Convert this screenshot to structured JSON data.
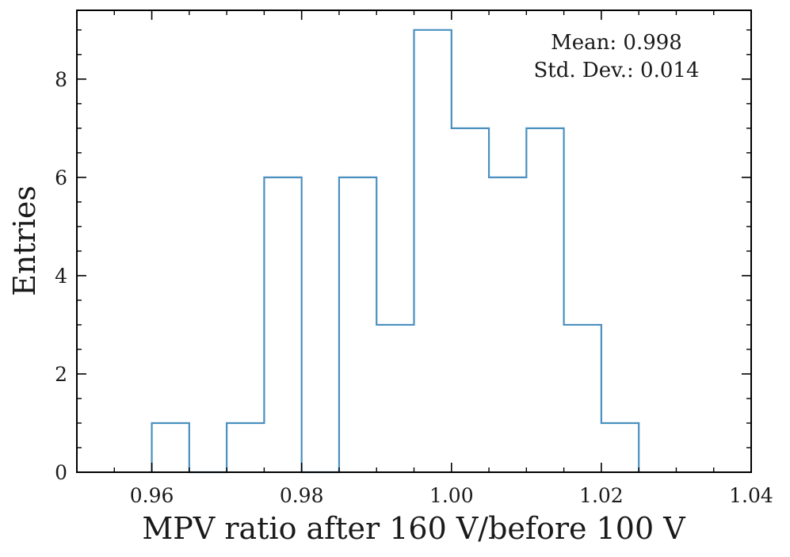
{
  "chart_data": {
    "type": "histogram",
    "xlabel": "MPV ratio after 160 V/before 100 V",
    "ylabel": "Entries",
    "xlim": [
      0.95,
      1.04
    ],
    "ylim": [
      0,
      9.4
    ],
    "xticks": [
      0.96,
      0.98,
      1.0,
      1.02,
      1.04
    ],
    "xtick_labels": [
      "0.96",
      "0.98",
      "1.00",
      "1.02",
      "1.04"
    ],
    "yticks": [
      0,
      2,
      4,
      6,
      8
    ],
    "ytick_labels": [
      "0",
      "2",
      "4",
      "6",
      "8"
    ],
    "bin_edges": [
      0.96,
      0.965,
      0.97,
      0.975,
      0.98,
      0.985,
      0.99,
      0.995,
      1.0,
      1.005,
      1.01,
      1.015,
      1.02,
      1.025
    ],
    "counts": [
      1,
      0,
      1,
      6,
      0,
      6,
      3,
      9,
      7,
      6,
      7,
      3,
      1
    ],
    "line_color": "#4a90bf",
    "grid": false,
    "annotations": {
      "mean": "Mean: 0.998",
      "std": "Std. Dev.: 0.014"
    }
  }
}
